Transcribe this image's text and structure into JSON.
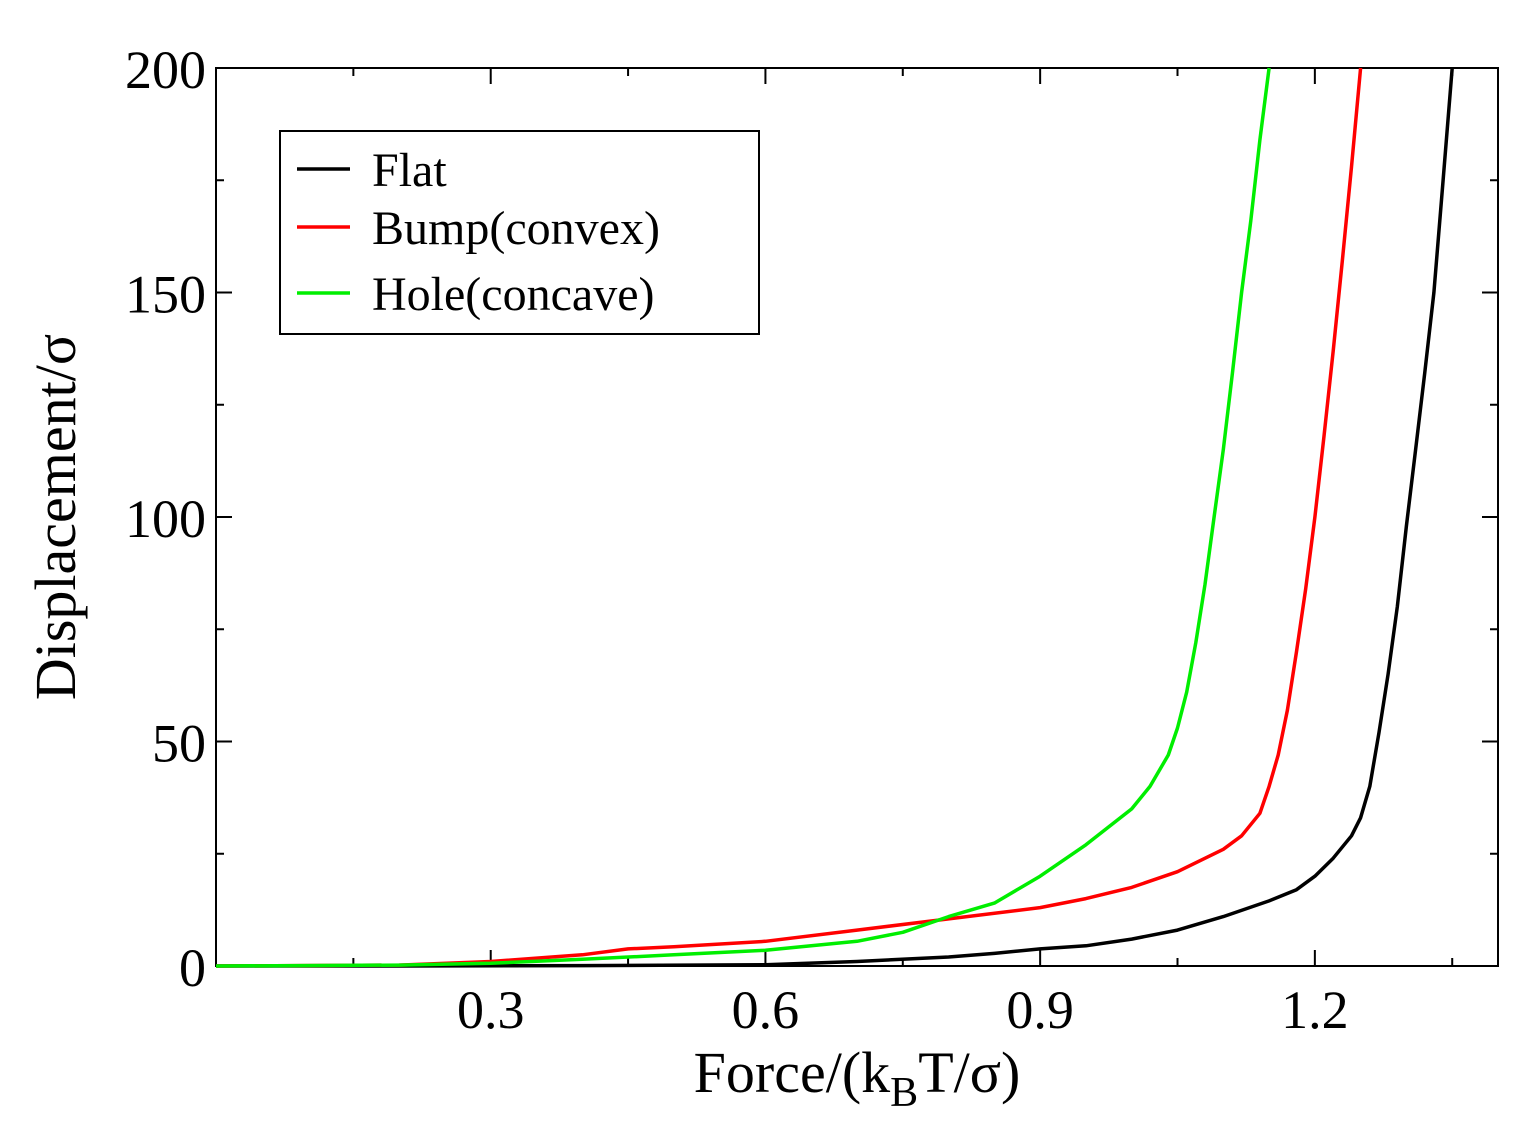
{
  "chart_data": {
    "type": "line",
    "title": "",
    "xlabel": {
      "main": "Force/(k",
      "sub": "B",
      "rest": "T/σ)"
    },
    "ylabel": "Displacement/σ",
    "xlim": [
      0,
      1.4
    ],
    "ylim": [
      0,
      200
    ],
    "xticks": [
      {
        "value": 0.3,
        "label": "0.3"
      },
      {
        "value": 0.6,
        "label": "0.6"
      },
      {
        "value": 0.9,
        "label": "0.9"
      },
      {
        "value": 1.2,
        "label": "1.2"
      }
    ],
    "yticks": [
      {
        "value": 0,
        "label": "0"
      },
      {
        "value": 50,
        "label": "50"
      },
      {
        "value": 100,
        "label": "100"
      },
      {
        "value": 150,
        "label": "150"
      },
      {
        "value": 200,
        "label": "200"
      }
    ],
    "grid": false,
    "legend_position": "top-left",
    "series": [
      {
        "name": "Flat",
        "color": "#000000",
        "x": [
          0.0,
          0.2,
          0.4,
          0.6,
          0.7,
          0.8,
          0.85,
          0.9,
          0.95,
          1.0,
          1.05,
          1.1,
          1.15,
          1.18,
          1.2,
          1.22,
          1.24,
          1.25,
          1.26,
          1.27,
          1.28,
          1.29,
          1.3,
          1.31,
          1.32,
          1.33,
          1.34,
          1.35
        ],
        "values": [
          0.0,
          0.0,
          0.1,
          0.3,
          1.0,
          2.0,
          2.8,
          3.8,
          4.5,
          6.0,
          8.0,
          11.0,
          14.5,
          17.0,
          20.0,
          24.0,
          29.0,
          33.0,
          40.0,
          52.0,
          65.0,
          80.0,
          98.0,
          115.0,
          132.0,
          150.0,
          175.0,
          200.0
        ]
      },
      {
        "name": "Bump(convex)",
        "color": "#ff0000",
        "x": [
          0.0,
          0.2,
          0.3,
          0.4,
          0.45,
          0.5,
          0.6,
          0.7,
          0.8,
          0.9,
          0.95,
          1.0,
          1.05,
          1.1,
          1.12,
          1.14,
          1.15,
          1.16,
          1.17,
          1.18,
          1.19,
          1.2,
          1.21,
          1.22,
          1.23,
          1.24,
          1.25
        ],
        "values": [
          0.0,
          0.2,
          1.0,
          2.5,
          3.8,
          4.3,
          5.5,
          8.0,
          10.5,
          13.0,
          15.0,
          17.5,
          21.0,
          26.0,
          29.0,
          34.0,
          40.0,
          47.0,
          57.0,
          70.0,
          84.0,
          100.0,
          118.0,
          137.0,
          157.0,
          178.0,
          200.0
        ]
      },
      {
        "name": "Hole(concave)",
        "color": "#00ee00",
        "x": [
          0.0,
          0.2,
          0.3,
          0.4,
          0.5,
          0.6,
          0.7,
          0.75,
          0.8,
          0.85,
          0.9,
          0.95,
          1.0,
          1.02,
          1.04,
          1.05,
          1.06,
          1.07,
          1.08,
          1.09,
          1.1,
          1.11,
          1.12,
          1.13,
          1.14,
          1.15
        ],
        "values": [
          0.0,
          0.2,
          0.6,
          1.5,
          2.5,
          3.5,
          5.5,
          7.5,
          11.0,
          14.0,
          20.0,
          27.0,
          35.0,
          40.0,
          47.0,
          53.0,
          61.0,
          72.0,
          85.0,
          100.0,
          115.0,
          132.0,
          150.0,
          166.0,
          184.0,
          200.0
        ]
      }
    ]
  }
}
